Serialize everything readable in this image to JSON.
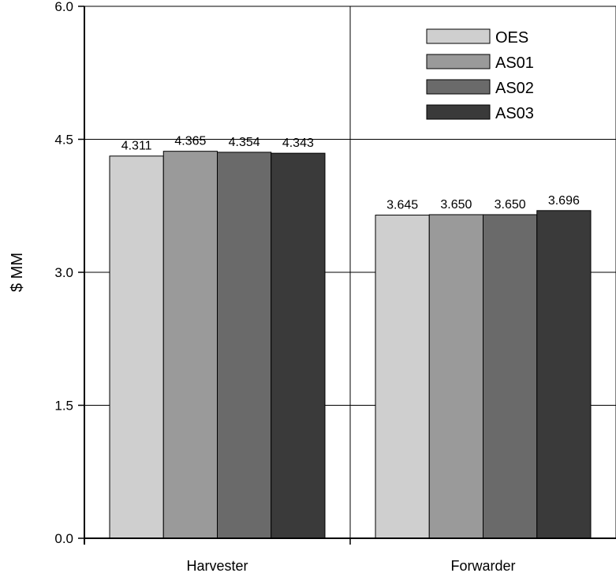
{
  "chart_data": {
    "type": "bar",
    "title": "",
    "xlabel": "",
    "ylabel": "$ MM",
    "ylim": [
      0,
      6
    ],
    "yticks": [
      "0.0",
      "1.5",
      "3.0",
      "4.5",
      "6.0"
    ],
    "ytick_values": [
      0,
      1.5,
      3,
      4.5,
      6
    ],
    "categories": [
      "Harvester",
      "Forwarder"
    ],
    "grid": true,
    "legend_position": "top-right",
    "series": [
      {
        "name": "OES",
        "values": [
          4.311,
          3.645
        ],
        "labels": [
          "4.311",
          "3.645"
        ],
        "color": "#cfcfcf"
      },
      {
        "name": "AS01",
        "values": [
          4.365,
          3.65
        ],
        "labels": [
          "4.365",
          "3.650"
        ],
        "color": "#9a9a9a"
      },
      {
        "name": "AS02",
        "values": [
          4.354,
          3.65
        ],
        "labels": [
          "4.354",
          "3.650"
        ],
        "color": "#6a6a6a"
      },
      {
        "name": "AS03",
        "values": [
          4.343,
          3.696
        ],
        "labels": [
          "4.343",
          "3.696"
        ],
        "color": "#3a3a3a"
      }
    ]
  }
}
